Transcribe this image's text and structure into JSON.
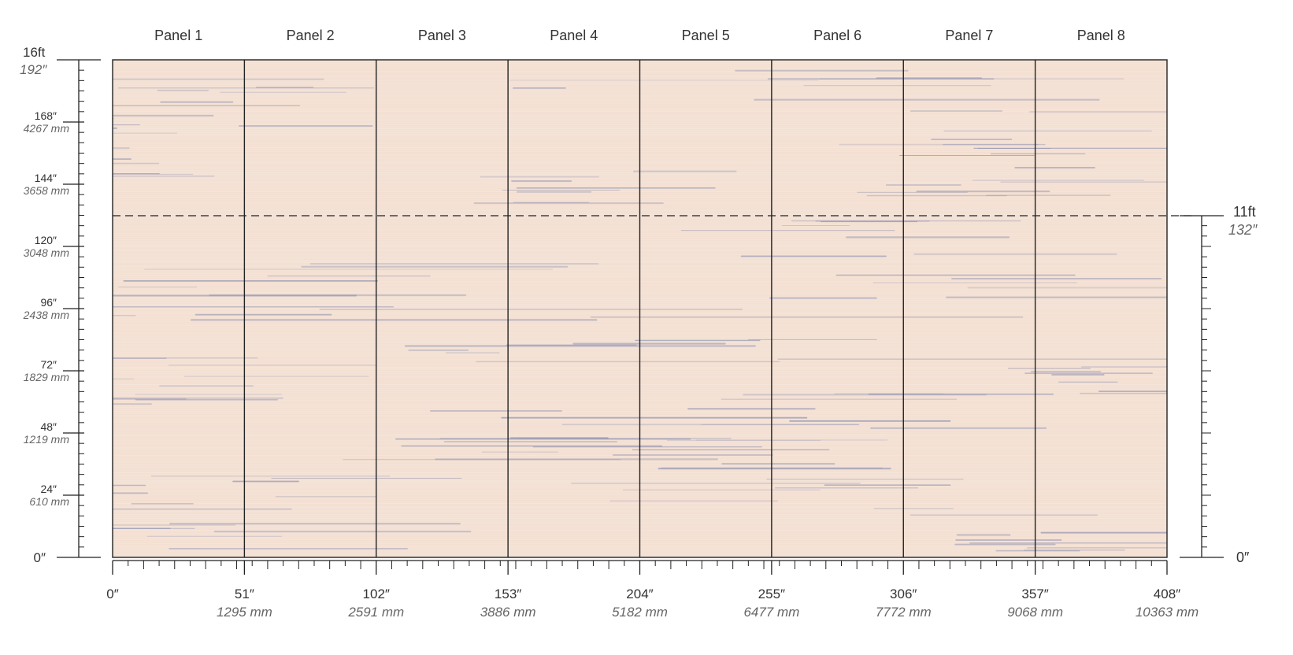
{
  "wallpaper": {
    "panels": [
      "Panel 1",
      "Panel 2",
      "Panel 3",
      "Panel 4",
      "Panel 5",
      "Panel 6",
      "Panel 7",
      "Panel 8"
    ],
    "background_color": "#f3dfd1",
    "stroke_color": "#8b8fb0",
    "total_width_in": 408,
    "total_height_in": 192,
    "panel_width_in": 51,
    "wall_height_in": 132
  },
  "left_scale": {
    "top_label": "16ft",
    "top_sub": "192″",
    "bottom_label": "0″",
    "ticks": [
      {
        "value": 168,
        "inch": "168″",
        "mm": "4267 mm"
      },
      {
        "value": 144,
        "inch": "144″",
        "mm": "3658 mm"
      },
      {
        "value": 120,
        "inch": "120″",
        "mm": "3048 mm"
      },
      {
        "value": 96,
        "inch": "96″",
        "mm": "2438 mm"
      },
      {
        "value": 72,
        "inch": "72″",
        "mm": "1829 mm"
      },
      {
        "value": 48,
        "inch": "48″",
        "mm": "1219 mm"
      },
      {
        "value": 24,
        "inch": "24″",
        "mm": "610 mm"
      }
    ]
  },
  "right_scale": {
    "top_label": "11ft",
    "top_sub": "132″",
    "bottom_label": "0″"
  },
  "bottom_scale": {
    "ticks": [
      {
        "value": 0,
        "inch": "0″",
        "mm": ""
      },
      {
        "value": 51,
        "inch": "51″",
        "mm": "1295 mm"
      },
      {
        "value": 102,
        "inch": "102″",
        "mm": "2591 mm"
      },
      {
        "value": 153,
        "inch": "153″",
        "mm": "3886 mm"
      },
      {
        "value": 204,
        "inch": "204″",
        "mm": "5182 mm"
      },
      {
        "value": 255,
        "inch": "255″",
        "mm": "6477 mm"
      },
      {
        "value": 306,
        "inch": "306″",
        "mm": "7772 mm"
      },
      {
        "value": 357,
        "inch": "357″",
        "mm": "9068 mm"
      },
      {
        "value": 408,
        "inch": "408″",
        "mm": "10363 mm"
      }
    ]
  }
}
